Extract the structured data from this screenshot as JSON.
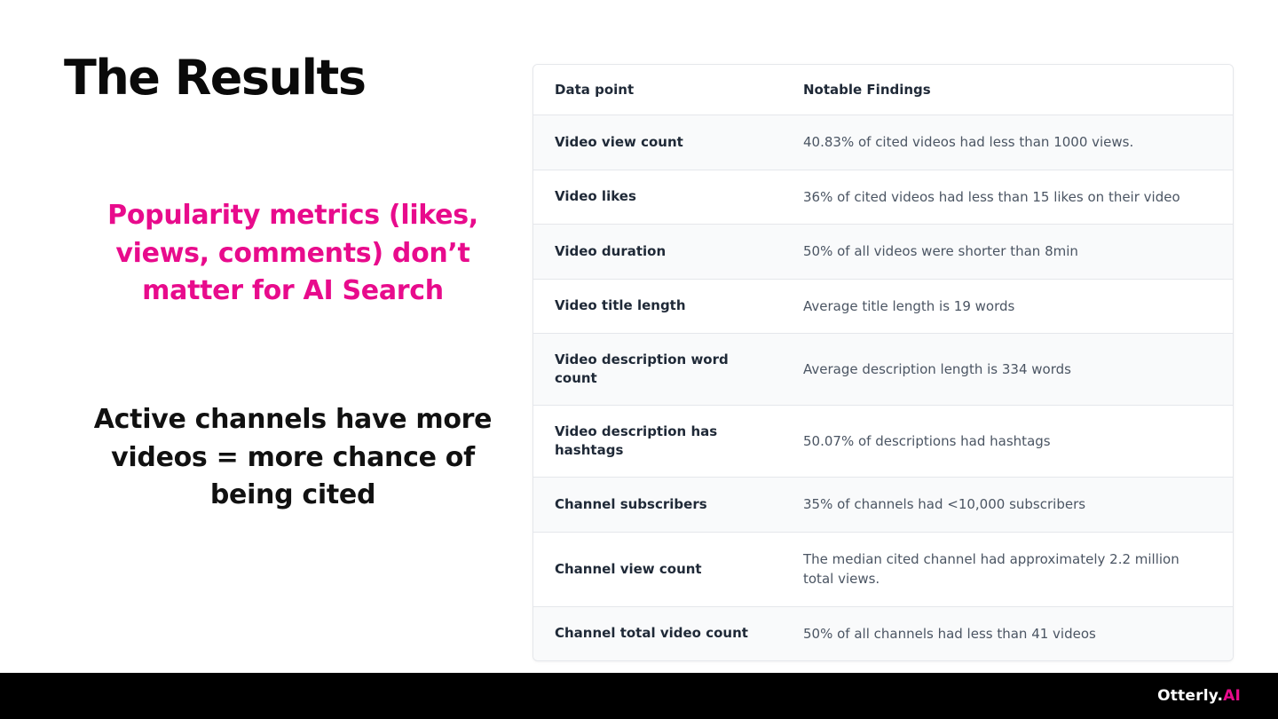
{
  "slide": {
    "title": "The Results",
    "highlight_text": "Popularity metrics (likes, views, comments) don’t matter for AI Search",
    "secondary_text": "Active channels have more videos = more chance of being cited"
  },
  "table": {
    "columns": [
      "Data point",
      "Notable Findings"
    ],
    "rows": [
      [
        "Video view count",
        "40.83% of cited videos had less than 1000 views."
      ],
      [
        "Video likes",
        "36% of cited videos had less than 15 likes on their video"
      ],
      [
        "Video duration",
        "50% of all videos were shorter than 8min"
      ],
      [
        "Video title length",
        "Average title length is 19 words"
      ],
      [
        "Video description word count",
        "Average description length is 334 words"
      ],
      [
        "Video description has hashtags",
        "50.07% of descriptions had hashtags"
      ],
      [
        "Channel subscribers",
        "35% of channels had <10,000 subscribers"
      ],
      [
        "Channel view count",
        "The median cited channel had approximately 2.2 million total views."
      ],
      [
        "Channel total video count",
        "50% of all channels had less than 41 videos"
      ]
    ]
  },
  "footer": {
    "brand_prefix": "Otterly.",
    "brand_suffix": "AI"
  },
  "colors": {
    "accent": "#E80B8C",
    "footer_bg": "#000000"
  }
}
